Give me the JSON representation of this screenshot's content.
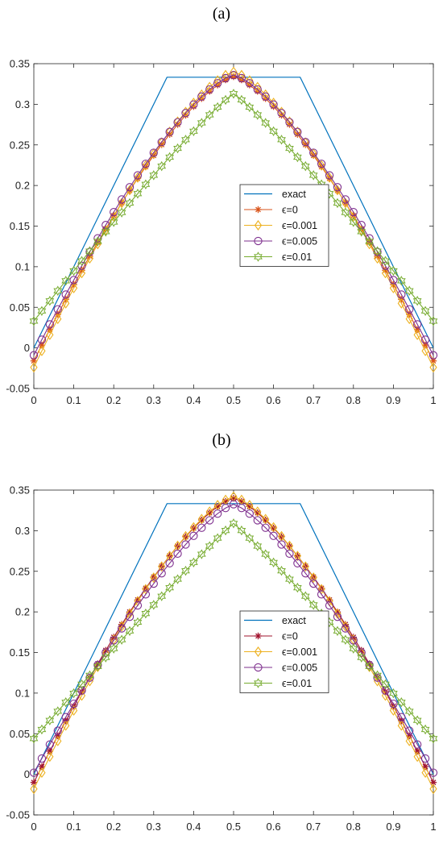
{
  "chart_data": [
    {
      "panel_label": "(a)",
      "type": "line",
      "title": "",
      "xlabel": "",
      "ylabel": "",
      "xlim": [
        0,
        1
      ],
      "ylim": [
        -0.05,
        0.35
      ],
      "xticks": [
        "0",
        "0.1",
        "0.2",
        "0.3",
        "0.4",
        "0.5",
        "0.6",
        "0.7",
        "0.8",
        "0.9",
        "1"
      ],
      "yticks": [
        "-0.05",
        "0",
        "0.05",
        "0.1",
        "0.15",
        "0.2",
        "0.25",
        "0.3",
        "0.35"
      ],
      "grid": false,
      "legend_position": "center-right",
      "exact": {
        "name": "exact",
        "color": "#0072BD",
        "x": [
          0,
          0.3333,
          0.6667,
          1
        ],
        "y": [
          0,
          0.3333,
          0.3333,
          0
        ]
      },
      "series": [
        {
          "name": "ϵ=0",
          "color": "#D95319",
          "marker": "asterisk",
          "a": 1.4,
          "c": -0.016,
          "y_center": 0.334
        },
        {
          "name": "ϵ=0.001",
          "color": "#EDB120",
          "marker": "diamond",
          "a": 1.4,
          "c": -0.024,
          "y_center": 0.34
        },
        {
          "name": "ϵ=0.005",
          "color": "#7E2F8E",
          "marker": "circle",
          "a": 1.4,
          "c": -0.009,
          "y_center": 0.336
        },
        {
          "name": "ϵ=0.01",
          "color": "#77AC30",
          "marker": "hexagram",
          "a": 1.12,
          "c": 0.033,
          "y_center": 0.313
        }
      ]
    },
    {
      "panel_label": "(b)",
      "type": "line",
      "title": "",
      "xlabel": "",
      "ylabel": "",
      "xlim": [
        0,
        1
      ],
      "ylim": [
        -0.05,
        0.35
      ],
      "xticks": [
        "0",
        "0.1",
        "0.2",
        "0.3",
        "0.4",
        "0.5",
        "0.6",
        "0.7",
        "0.8",
        "0.9",
        "1"
      ],
      "yticks": [
        "-0.05",
        "0",
        "0.05",
        "0.1",
        "0.15",
        "0.2",
        "0.25",
        "0.3",
        "0.35"
      ],
      "grid": false,
      "legend_position": "center-right",
      "exact": {
        "name": "exact",
        "color": "#0072BD",
        "x": [
          0,
          0.3333,
          0.6667,
          1
        ],
        "y": [
          0,
          0.3333,
          0.3333,
          0
        ]
      },
      "series": [
        {
          "name": "ϵ=0",
          "color": "#A2142F",
          "marker": "asterisk",
          "a": 1.4,
          "c": -0.01,
          "y_center": 0.34
        },
        {
          "name": "ϵ=0.001",
          "color": "#EDB120",
          "marker": "diamond",
          "a": 1.4,
          "c": -0.018,
          "y_center": 0.342
        },
        {
          "name": "ϵ=0.005",
          "color": "#7E2F8E",
          "marker": "circle",
          "a": 1.33,
          "c": 0.002,
          "y_center": 0.3325
        },
        {
          "name": "ϵ=0.01",
          "color": "#77AC30",
          "marker": "hexagram",
          "a": 1.06,
          "c": 0.044,
          "y_center": 0.309
        }
      ]
    }
  ]
}
